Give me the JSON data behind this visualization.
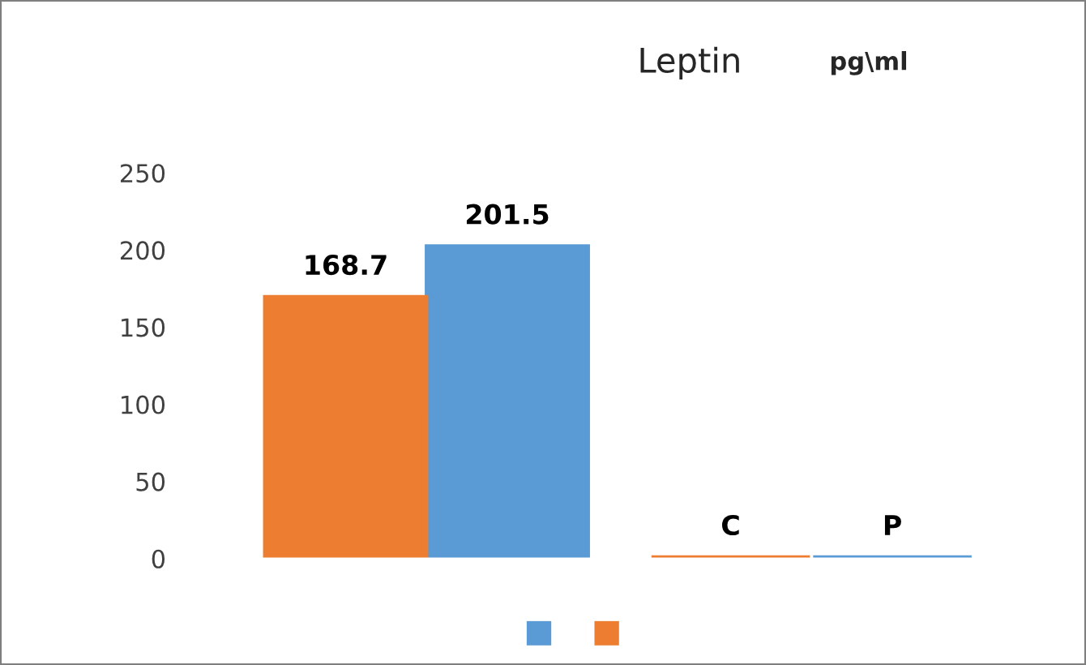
{
  "chart_data": {
    "type": "bar",
    "title": "Leptin",
    "subtitle": "pg\\ml",
    "categories": [
      null,
      null
    ],
    "series": [
      {
        "color": "#5b9bd5",
        "values": [
          201.5,
          0
        ],
        "value_labels": [
          "201.5",
          "P"
        ]
      },
      {
        "color": "#ed7d31",
        "values": [
          168.7,
          0
        ],
        "value_labels": [
          "168.7",
          "C"
        ]
      }
    ],
    "ylim": [
      0,
      250
    ],
    "yticks": [
      0,
      50,
      100,
      150,
      200,
      250
    ]
  }
}
